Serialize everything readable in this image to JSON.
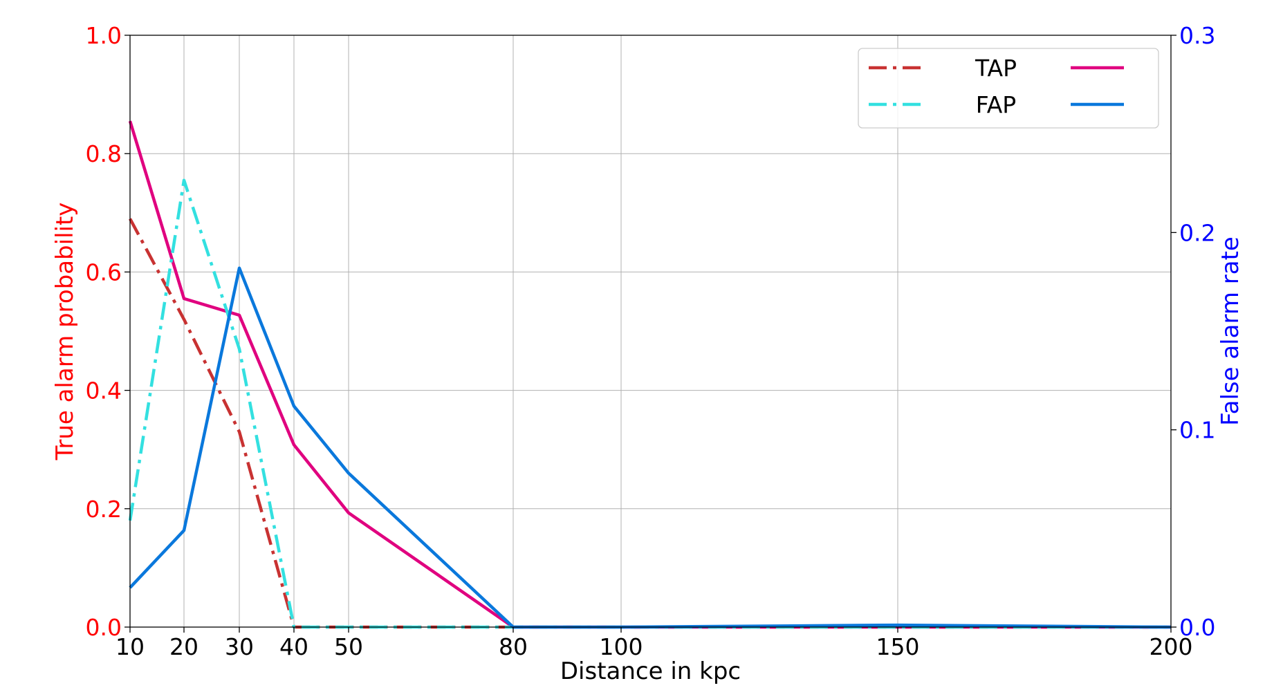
{
  "chart_data": {
    "type": "line",
    "title": "",
    "xlabel": "Distance in kpc",
    "ylabel_left": "True alarm probability",
    "ylabel_right": "False alarm rate",
    "x_ticks": [
      10,
      20,
      30,
      40,
      50,
      80,
      100,
      150,
      200
    ],
    "x_tick_labels": [
      "10",
      "20",
      "30",
      "40",
      "50",
      "80",
      "100",
      "150",
      "200"
    ],
    "ylim_left": [
      0,
      1.0
    ],
    "ylim_right": [
      0,
      0.3
    ],
    "y_left_ticks": [
      0.0,
      0.2,
      0.4,
      0.6,
      0.8,
      1.0
    ],
    "y_left_tick_labels": [
      "0.0",
      "0.2",
      "0.4",
      "0.6",
      "0.8",
      "1.0"
    ],
    "y_right_ticks": [
      0.0,
      0.1,
      0.2,
      0.3
    ],
    "y_right_tick_labels": [
      "0.0",
      "0.1",
      "0.2",
      "0.3"
    ],
    "grid": true,
    "legend_position": "top-right",
    "legend_rows": [
      {
        "label": "TAP",
        "left_series": 0,
        "right_series": 1
      },
      {
        "label": "FAP",
        "left_series": 2,
        "right_series": 3
      }
    ],
    "series": [
      {
        "axis": "left",
        "style": "dashdot",
        "color": "#c83232",
        "x": [
          10,
          20,
          30,
          40,
          50,
          80,
          100,
          150,
          200
        ],
        "y": [
          0.69,
          0.52,
          0.33,
          0.0,
          0.0,
          0.0,
          0.0,
          0.0,
          0.0
        ]
      },
      {
        "axis": "left",
        "style": "solid",
        "color": "#e0007f",
        "x": [
          10,
          20,
          30,
          40,
          50,
          80,
          100,
          150,
          200
        ],
        "y": [
          0.855,
          0.555,
          0.527,
          0.308,
          0.193,
          0.0,
          0.0,
          0.0,
          0.0
        ]
      },
      {
        "axis": "left",
        "style": "dashdot",
        "color": "#33e0e0",
        "x": [
          10,
          20,
          30,
          40,
          50,
          80,
          100,
          150,
          200
        ],
        "y": [
          0.18,
          0.755,
          0.47,
          0.0,
          0.0,
          0.0,
          0.0,
          0.0,
          0.0
        ]
      },
      {
        "axis": "right",
        "style": "solid",
        "color": "#0a78dc",
        "x": [
          10,
          20,
          30,
          40,
          50,
          80,
          100,
          150,
          200
        ],
        "y": [
          0.02,
          0.049,
          0.182,
          0.112,
          0.078,
          0.0,
          0.0,
          0.001,
          0.0
        ]
      }
    ],
    "colors": {
      "left_axis": "#ff0000",
      "right_axis": "#0000ff",
      "grid": "#b0b0b0"
    }
  }
}
